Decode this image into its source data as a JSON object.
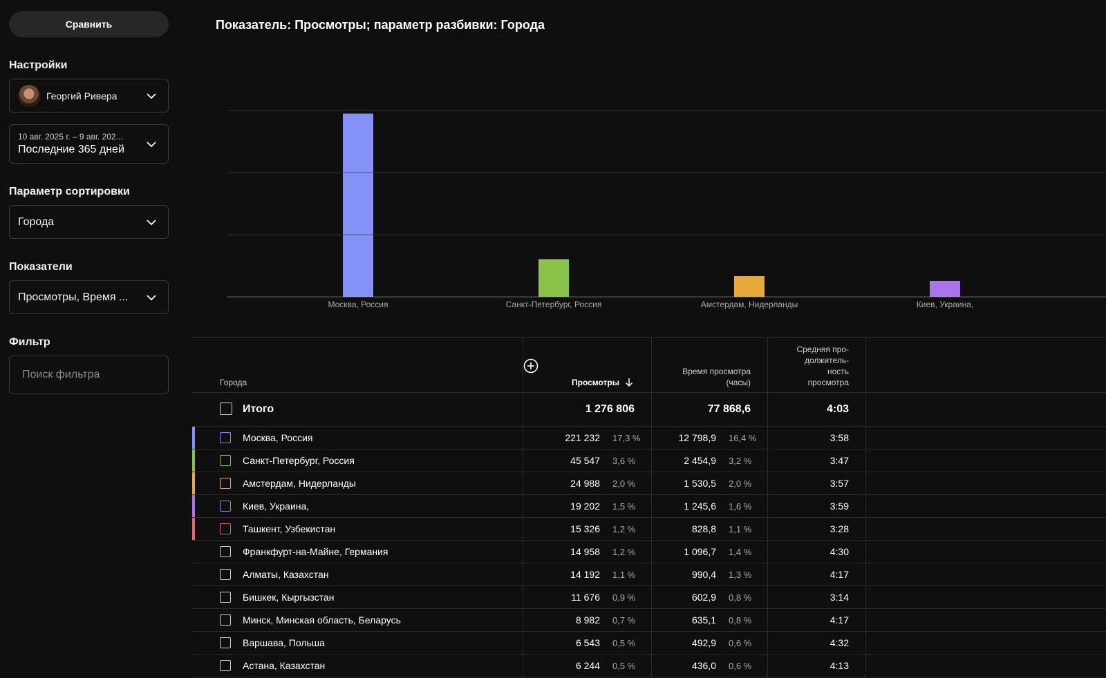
{
  "sidebar": {
    "compare_label": "Сравнить",
    "settings_title": "Настройки",
    "account_name": "Георгий Ривера",
    "date_range": "10 авг. 2025 г. – 9 авг. 202...",
    "date_period": "Последние 365 дней",
    "sort_title": "Параметр сортировки",
    "sort_value": "Города",
    "metrics_title": "Показатели",
    "metrics_value": "Просмотры, Время ...",
    "filter_title": "Фильтр",
    "filter_placeholder": "Поиск фильтра"
  },
  "main": {
    "heading": "Показатель: Просмотры; параметр разбивки: Города"
  },
  "chart_data": {
    "type": "bar",
    "categories": [
      "Москва, Россия",
      "Санкт-Петербург, Россия",
      "Амстердам, Нидерланды",
      "Киев, Украина,"
    ],
    "values": [
      221232,
      45547,
      24988,
      19202
    ],
    "colors": [
      "#8491f7",
      "#8bc34a",
      "#e8a93b",
      "#a974ec"
    ],
    "ylim": [
      0,
      225000
    ],
    "grid": true
  },
  "table": {
    "headers": {
      "city": "Города",
      "views": "Просмотры",
      "watch_line1": "Время просмотра",
      "watch_line2": "(часы)",
      "avg_line1": "Средняя про-",
      "avg_line2": "должитель-",
      "avg_line3": "ность",
      "avg_line4": "просмотра"
    },
    "total": {
      "label": "Итого",
      "views": "1 276 806",
      "watch": "77 868,6",
      "avg": "4:03"
    },
    "rows": [
      {
        "name": "Москва, Россия",
        "views": "221 232",
        "views_pct": "17,3 %",
        "watch": "12 798,9",
        "watch_pct": "16,4 %",
        "avg": "3:58",
        "color": "#8491f7"
      },
      {
        "name": "Санкт-Петербург, Россия",
        "views": "45 547",
        "views_pct": "3,6 %",
        "watch": "2 454,9",
        "watch_pct": "3,2 %",
        "avg": "3:47",
        "color": "#8bc34a"
      },
      {
        "name": "Амстердам, Нидерланды",
        "views": "24 988",
        "views_pct": "2,0 %",
        "watch": "1 530,5",
        "watch_pct": "2,0 %",
        "avg": "3:57",
        "color": "#e8a93b"
      },
      {
        "name": "Киев, Украина,",
        "views": "19 202",
        "views_pct": "1,5 %",
        "watch": "1 245,6",
        "watch_pct": "1,6 %",
        "avg": "3:59",
        "color": "#a974ec"
      },
      {
        "name": "Ташкент, Узбекистан",
        "views": "15 326",
        "views_pct": "1,2 %",
        "watch": "828,8",
        "watch_pct": "1,1 %",
        "avg": "3:28",
        "color": "#e06473"
      },
      {
        "name": "Франкфурт-на-Майне, Германия",
        "views": "14 958",
        "views_pct": "1,2 %",
        "watch": "1 096,7",
        "watch_pct": "1,4 %",
        "avg": "4:30",
        "color": ""
      },
      {
        "name": "Алматы, Казахстан",
        "views": "14 192",
        "views_pct": "1,1 %",
        "watch": "990,4",
        "watch_pct": "1,3 %",
        "avg": "4:17",
        "color": ""
      },
      {
        "name": "Бишкек, Кыргызстан",
        "views": "11 676",
        "views_pct": "0,9 %",
        "watch": "602,9",
        "watch_pct": "0,8 %",
        "avg": "3:14",
        "color": ""
      },
      {
        "name": "Минск, Минская область, Беларусь",
        "views": "8 982",
        "views_pct": "0,7 %",
        "watch": "635,1",
        "watch_pct": "0,8 %",
        "avg": "4:17",
        "color": ""
      },
      {
        "name": "Варшава, Польша",
        "views": "6 543",
        "views_pct": "0,5 %",
        "watch": "492,9",
        "watch_pct": "0,6 %",
        "avg": "4:32",
        "color": ""
      },
      {
        "name": "Астана, Казахстан",
        "views": "6 244",
        "views_pct": "0,5 %",
        "watch": "436,0",
        "watch_pct": "0,6 %",
        "avg": "4:13",
        "color": ""
      }
    ]
  }
}
